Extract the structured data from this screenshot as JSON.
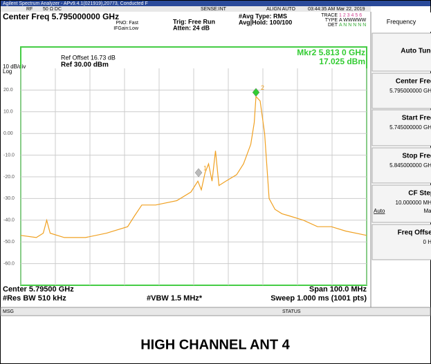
{
  "title_bar": "Agilent Spectrum Analyzer - APv9.4.1(021919),20773, Conducted F",
  "status_row": [
    "RF",
    "50 Ω  DC",
    "SENSE:INT",
    "ALIGN AUTO",
    "03:44:35 AM Mar 22, 2019"
  ],
  "center_freq": "Center Freq 5.795000000 GHz",
  "pno": "PNO: Fast",
  "ifgain": "IFGain:Low",
  "trig": "Trig: Free Run",
  "atten": "Atten: 24 dB",
  "avg_type": "#Avg Type: RMS",
  "avg_hold": "Avg|Hold: 100/100",
  "trace_labels": [
    "TRACE",
    "TYPE",
    "DET"
  ],
  "trace_values": [
    "1 2 3 4 5 6",
    "A WWWWW",
    "A N N N N N"
  ],
  "ref_offset": "Ref Offset 16.73 dB",
  "scale": "10 dB/div",
  "ref": "Ref 30.00 dBm",
  "log": "Log",
  "marker_readout": [
    "Mkr2 5.813 0 GHz",
    "17.025 dBm"
  ],
  "bottom": {
    "center": "Center 5.79500 GHz",
    "span": "Span 100.0 MHz",
    "rbw": "#Res BW 510 kHz",
    "vbw": "#VBW 1.5 MHz*",
    "sweep": "Sweep  1.000 ms (1001 pts)"
  },
  "messages": [
    "MSG",
    "STATUS"
  ],
  "menu": {
    "title": "Frequency",
    "items": [
      {
        "label": "Auto Tune"
      },
      {
        "label": "Center Freq",
        "value": "5.795000000 GHz"
      },
      {
        "label": "Start Freq",
        "value": "5.745000000 GHz"
      },
      {
        "label": "Stop Freq",
        "value": "5.845000000 GHz"
      },
      {
        "label": "CF Step",
        "value": "10.000000 MHz",
        "options": [
          "Auto",
          "Man"
        ]
      },
      {
        "label": "Freq Offset",
        "value": "0 Hz"
      }
    ]
  },
  "caption": "HIGH CHANNEL ANT 4",
  "chart_data": {
    "type": "line",
    "color": "#f0a020",
    "xlim": [
      5.745,
      5.845
    ],
    "xticks": [
      5.745,
      5.755,
      5.765,
      5.775,
      5.785,
      5.795,
      5.805,
      5.815,
      5.825,
      5.835,
      5.845
    ],
    "ylim": [
      -70,
      30
    ],
    "yticks": [
      {
        "value": 20,
        "label": "20.0"
      },
      {
        "value": 10,
        "label": "10.0"
      },
      {
        "value": 0,
        "label": "0.00"
      },
      {
        "value": -10,
        "label": "-10.0"
      },
      {
        "value": -20,
        "label": "-20.0"
      },
      {
        "value": -30,
        "label": "-30.0"
      },
      {
        "value": -40,
        "label": "-40.0"
      },
      {
        "value": -50,
        "label": "-50.0"
      },
      {
        "value": -60,
        "label": "-60.0"
      }
    ],
    "grid": true,
    "x": [
      5.745,
      5.7495,
      5.7515,
      5.7525,
      5.7535,
      5.7576,
      5.7637,
      5.7698,
      5.7759,
      5.7779,
      5.78,
      5.784,
      5.7901,
      5.7942,
      5.7962,
      5.7972,
      5.7983,
      5.7993,
      5.8003,
      5.8013,
      5.8023,
      5.8043,
      5.8074,
      5.8094,
      5.8115,
      5.8125,
      5.813,
      5.8142,
      5.8155,
      5.8168,
      5.8185,
      5.8205,
      5.8226,
      5.8267,
      5.8308,
      5.8348,
      5.8389,
      5.845
    ],
    "values": [
      -47,
      -48,
      -46,
      -40,
      -46,
      -48,
      -48,
      -46,
      -43,
      -38,
      -33,
      -33,
      -31,
      -27,
      -22,
      -26,
      -18,
      -14,
      -22,
      -8,
      -24,
      -22,
      -19,
      -14,
      -5,
      5,
      17,
      15,
      0,
      -30,
      -35,
      -37,
      -38,
      -40,
      -43,
      -43,
      -45,
      -47
    ],
    "markers": [
      {
        "label": "1",
        "x": 5.7964,
        "y": -20
      },
      {
        "label": "2",
        "x": 5.813,
        "y": 17.025
      }
    ]
  }
}
